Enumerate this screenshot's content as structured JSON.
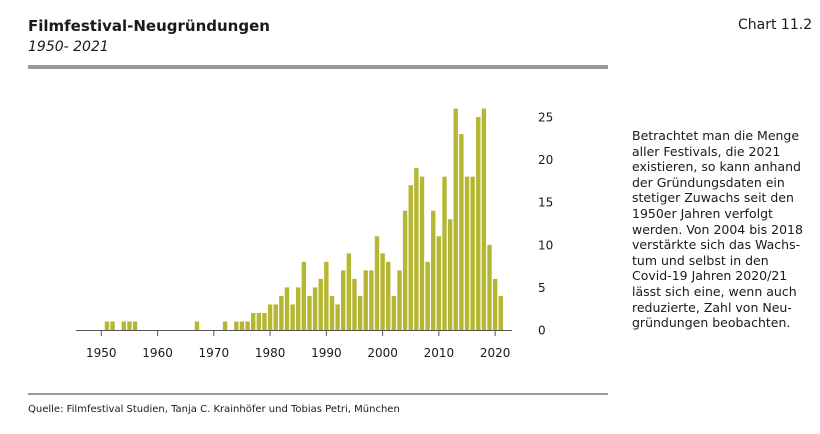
{
  "header": {
    "title": "Filmfestival-Neugründungen",
    "subtitle": "1950- 2021",
    "chart_number": "Chart 11.2"
  },
  "description": "Betrachtet man die Menge\naller Festivals, die 2021\nexistieren, so kann anhand\nder Gründungsdaten ein\nstetiger Zuwachs seit den\n1950er Jahren verfolgt\nwerden. Von 2004 bis 2018\nverstärkte sich das Wachs-\ntum und selbst in den\nCovid-19 Jahren 2020/21\nlässt sich eine, wenn auch\nreduzierte, Zahl von Neu-\ngründungen beobachten.",
  "source": "Quelle: Filmfestival Studien, Tanja C. Krainhöfer und Tobias Petri, München",
  "colors": {
    "bar": "#b5b631",
    "axis": "#555555",
    "rule": "#9a9a9a"
  },
  "chart_data": {
    "type": "bar",
    "title": "Filmfestival-Neugründungen",
    "x": [
      1948,
      1949,
      1950,
      1951,
      1952,
      1953,
      1954,
      1955,
      1956,
      1957,
      1958,
      1959,
      1960,
      1961,
      1962,
      1963,
      1964,
      1965,
      1966,
      1967,
      1968,
      1969,
      1970,
      1971,
      1972,
      1973,
      1974,
      1975,
      1976,
      1977,
      1978,
      1979,
      1980,
      1981,
      1982,
      1983,
      1984,
      1985,
      1986,
      1987,
      1988,
      1989,
      1990,
      1991,
      1992,
      1993,
      1994,
      1995,
      1996,
      1997,
      1998,
      1999,
      2000,
      2001,
      2002,
      2003,
      2004,
      2005,
      2006,
      2007,
      2008,
      2009,
      2010,
      2011,
      2012,
      2013,
      2014,
      2015,
      2016,
      2017,
      2018,
      2019,
      2020,
      2021
    ],
    "values": [
      0,
      0,
      0,
      1,
      1,
      0,
      1,
      1,
      1,
      0,
      0,
      0,
      0,
      0,
      0,
      0,
      0,
      0,
      0,
      1,
      0,
      0,
      0,
      0,
      1,
      0,
      1,
      1,
      1,
      2,
      2,
      2,
      3,
      3,
      4,
      5,
      3,
      5,
      8,
      4,
      5,
      6,
      8,
      4,
      3,
      7,
      9,
      6,
      4,
      7,
      7,
      11,
      9,
      8,
      4,
      7,
      14,
      17,
      19,
      18,
      8,
      14,
      11,
      18,
      13,
      26,
      23,
      18,
      18,
      25,
      26,
      10,
      6,
      4
    ],
    "xticks": [
      1950,
      1960,
      1970,
      1980,
      1990,
      2000,
      2010,
      2020
    ],
    "yticks": [
      0,
      5,
      10,
      15,
      20,
      25
    ],
    "xlim": [
      1945.5,
      2023
    ],
    "ylim": [
      0,
      27
    ],
    "xlabel": "",
    "ylabel": "",
    "y_axis_position": "right",
    "grid": false,
    "legend": "none"
  }
}
